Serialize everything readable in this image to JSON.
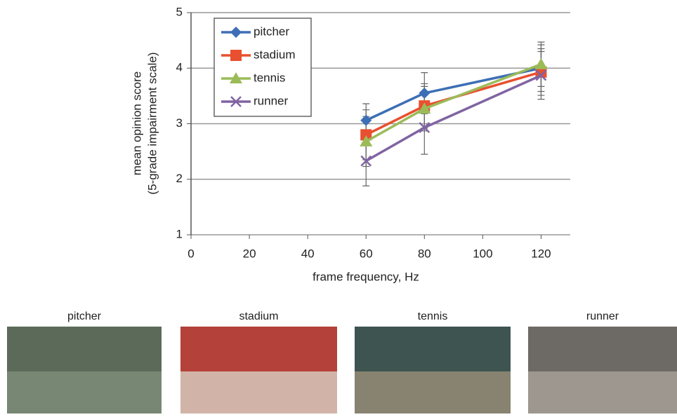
{
  "chart_data": {
    "type": "line",
    "xlabel": "frame frequency, Hz",
    "ylabel": [
      "mean opinion score",
      "(5-grade impairment scale)"
    ],
    "x": [
      60,
      80,
      120
    ],
    "series": [
      {
        "name": "pitcher",
        "color": "#3d6fb6",
        "marker": "diamond",
        "values": [
          3.06,
          3.55,
          4.0
        ],
        "errors": [
          0.3,
          0.37,
          0.42
        ]
      },
      {
        "name": "stadium",
        "color": "#e8502f",
        "marker": "square",
        "values": [
          2.8,
          3.32,
          3.93
        ],
        "errors": [
          0.45,
          0.4,
          0.42
        ]
      },
      {
        "name": "tennis",
        "color": "#9bbb59",
        "marker": "triangle",
        "values": [
          2.68,
          3.27,
          4.07
        ],
        "errors": [
          0.45,
          0.4,
          0.4
        ]
      },
      {
        "name": "runner",
        "color": "#8064a2",
        "marker": "x",
        "values": [
          2.33,
          2.93,
          3.87
        ],
        "errors": [
          0.45,
          0.48,
          0.43
        ]
      }
    ],
    "xlim": [
      0,
      130
    ],
    "xticks": [
      0,
      20,
      40,
      60,
      80,
      100,
      120
    ],
    "ylim": [
      1,
      5
    ],
    "yticks": [
      1,
      2,
      3,
      4,
      5
    ],
    "grid": true,
    "legend": "upper-left"
  },
  "images": [
    {
      "caption": "pitcher"
    },
    {
      "caption": "stadium"
    },
    {
      "caption": "tennis"
    },
    {
      "caption": "runner"
    }
  ]
}
